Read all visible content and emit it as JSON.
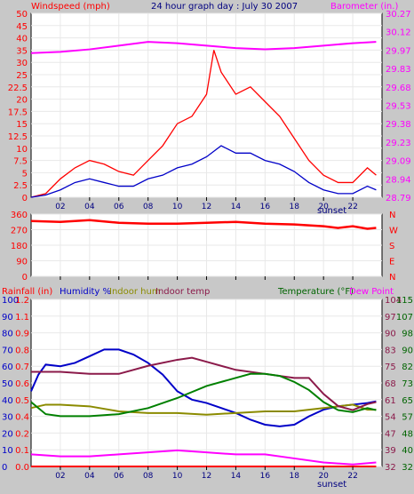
{
  "header": {
    "windspeed_label": "Windspeed (mph)",
    "title": "24 hour graph day : July 30 2007",
    "barometer_label": "Barometer (in.)"
  },
  "colors": {
    "background": "#c8c8c8",
    "plot_bg": "#ffffff",
    "red": "#ff0000",
    "magenta": "#ff00ff",
    "blue": "#0000c8",
    "green": "#008000",
    "maroon": "#8b1a4a",
    "olive": "#8b8b00",
    "dark_green": "#006400"
  },
  "x_ticks": [
    "02",
    "04",
    "06",
    "08",
    "10",
    "12",
    "14",
    "16",
    "18",
    "20",
    "22"
  ],
  "sunset_label": "sunset",
  "chart_data": [
    {
      "type": "line",
      "title": "24 hour graph day : July 30 2007",
      "x_range": [
        0,
        24
      ],
      "left_axis": {
        "label": "Windspeed (mph)",
        "ticks": [
          "0",
          "2.5",
          "5",
          "7.5",
          "10",
          "12.5",
          "15",
          "17.5",
          "20",
          "22.5",
          "25",
          "30",
          "35",
          "40",
          "45",
          "50"
        ],
        "range": [
          0,
          50
        ]
      },
      "right_axis": {
        "label": "Barometer (in.)",
        "ticks": [
          "28.79",
          "28.94",
          "29.09",
          "29.23",
          "29.38",
          "29.53",
          "29.68",
          "29.83",
          "29.97",
          "30.12",
          "30.27"
        ],
        "range": [
          28.79,
          30.27
        ]
      },
      "series": [
        {
          "name": "Windspeed (mph)",
          "color": "#ff0000",
          "x": [
            0,
            1,
            2,
            3,
            4,
            5,
            6,
            7,
            8,
            9,
            10,
            11,
            12,
            12.5,
            13,
            14,
            15,
            16,
            17,
            18,
            19,
            20,
            21,
            22,
            23,
            23.6
          ],
          "y": [
            0,
            0.5,
            2.5,
            4,
            5,
            4.5,
            3.5,
            3,
            5,
            7,
            10,
            11,
            14,
            20,
            17,
            14,
            15,
            13,
            11,
            8,
            5,
            3,
            2,
            2,
            4,
            3
          ]
        },
        {
          "name": "Wind gust (avg)",
          "color": "#0000c8",
          "x": [
            0,
            1,
            2,
            3,
            4,
            5,
            6,
            7,
            8,
            9,
            10,
            11,
            12,
            13,
            14,
            15,
            16,
            17,
            18,
            19,
            20,
            21,
            22,
            23,
            23.6
          ],
          "y": [
            0,
            0.3,
            1,
            2,
            2.5,
            2,
            1.5,
            1.5,
            2.5,
            3,
            4,
            4.5,
            5.5,
            7,
            6,
            6,
            5,
            4.5,
            3.5,
            2,
            1,
            0.5,
            0.5,
            1.5,
            1
          ]
        },
        {
          "name": "Barometer (in.)",
          "color": "#ff00ff",
          "x": [
            0,
            2,
            4,
            6,
            8,
            10,
            12,
            14,
            16,
            18,
            20,
            22,
            23.6
          ],
          "y": [
            29.95,
            29.96,
            29.98,
            30.01,
            30.04,
            30.03,
            30.01,
            29.99,
            29.98,
            29.99,
            30.01,
            30.03,
            30.04
          ]
        }
      ]
    },
    {
      "type": "line",
      "title": "Wind direction",
      "x_range": [
        0,
        24
      ],
      "left_axis": {
        "ticks": [
          "0",
          "90",
          "180",
          "270",
          "360"
        ],
        "range": [
          0,
          360
        ]
      },
      "right_axis": {
        "ticks": [
          "N",
          "E",
          "S",
          "W",
          "N"
        ]
      },
      "series": [
        {
          "name": "Wind direction",
          "color": "#ff0000",
          "x": [
            0,
            2,
            4,
            6,
            8,
            10,
            12,
            14,
            16,
            18,
            20,
            21,
            22,
            23,
            23.6
          ],
          "y": [
            320,
            315,
            325,
            310,
            305,
            305,
            310,
            315,
            305,
            300,
            290,
            280,
            290,
            275,
            280
          ]
        }
      ]
    },
    {
      "type": "line",
      "title": "",
      "x_range": [
        0,
        24
      ],
      "left_axis_rain": {
        "label": "Rainfall (in)",
        "ticks": [
          "0.0",
          "0.1",
          "0.2",
          "0.4",
          "0.5",
          "0.6",
          "0.7",
          "0.8",
          "0.9",
          "1.1",
          "1.2"
        ],
        "range": [
          0,
          1.2
        ]
      },
      "left_axis_humidity": {
        "label": "Humidity %",
        "ticks": [
          "0",
          "10",
          "20",
          "30",
          "40",
          "50",
          "60",
          "70",
          "80",
          "90",
          "100"
        ],
        "range": [
          0,
          100
        ]
      },
      "right_axis_temp": {
        "label": "Temperature (°F)",
        "ticks": [
          "32",
          "40",
          "48",
          "57",
          "65",
          "73",
          "82",
          "90",
          "98",
          "107",
          "115"
        ],
        "range": [
          32,
          115
        ]
      },
      "right_axis_dew": {
        "label": "Dew Point",
        "ticks": [
          "32",
          "39",
          "47",
          "54",
          "61",
          "68",
          "75",
          "83",
          "90",
          "97",
          "104"
        ],
        "range": [
          32,
          104
        ]
      },
      "series": [
        {
          "name": "Rainfall (in)",
          "color": "#ff0000",
          "x": [
            0,
            23.6
          ],
          "y": [
            0.0,
            0.0
          ]
        },
        {
          "name": "Humidity %",
          "color": "#0000c8",
          "x": [
            0,
            0.5,
            1,
            2,
            3,
            4,
            5,
            6,
            7,
            8,
            9,
            10,
            11,
            12,
            13,
            14,
            15,
            16,
            17,
            18,
            19,
            20,
            21,
            22,
            23,
            23.6
          ],
          "y": [
            45,
            55,
            61,
            60,
            62,
            66,
            70,
            70,
            67,
            62,
            55,
            45,
            40,
            38,
            35,
            32,
            28,
            25,
            24,
            25,
            30,
            34,
            36,
            37,
            38,
            39
          ]
        },
        {
          "name": "Indoor hum",
          "color": "#8b8b00",
          "x": [
            0,
            1,
            2,
            4,
            6,
            8,
            10,
            12,
            14,
            16,
            18,
            20,
            21,
            22,
            23,
            23.6
          ],
          "y": [
            35,
            37,
            37,
            36,
            33,
            32,
            32,
            31,
            32,
            33,
            33,
            35,
            36,
            37,
            34,
            34
          ]
        },
        {
          "name": "Indoor temp",
          "color": "#8b1a4a",
          "x": [
            0,
            2,
            4,
            6,
            8,
            10,
            11,
            12,
            14,
            16,
            18,
            19,
            20,
            21,
            22,
            23,
            23.6
          ],
          "y": [
            79,
            79,
            78,
            78,
            82,
            85,
            86,
            84,
            80,
            78,
            76,
            76,
            68,
            62,
            60,
            63,
            64
          ]
        },
        {
          "name": "Temperature (°F)",
          "color": "#008000",
          "x": [
            0,
            1,
            2,
            4,
            6,
            8,
            10,
            12,
            14,
            15,
            16,
            17,
            18,
            19,
            20,
            21,
            22,
            23,
            23.6
          ],
          "y": [
            64,
            58,
            57,
            57,
            58,
            61,
            66,
            72,
            76,
            78,
            78,
            77,
            74,
            70,
            64,
            60,
            59,
            61,
            60
          ]
        },
        {
          "name": "Dew Point",
          "color": "#ff00ff",
          "x": [
            0,
            2,
            4,
            6,
            8,
            10,
            12,
            14,
            16,
            18,
            20,
            22,
            23.6
          ],
          "y": [
            38,
            37,
            37,
            38,
            39,
            40,
            39,
            38,
            38,
            36,
            34,
            33,
            34
          ]
        }
      ]
    }
  ],
  "panel3_labels": {
    "rainfall": "Rainfall (in)",
    "humidity": "Humidity %",
    "indoor_hum": "Indoor hum",
    "indoor_temp": "Indoor temp",
    "temperature": "Temperature (°F)",
    "dew_point": "Dew Point"
  }
}
